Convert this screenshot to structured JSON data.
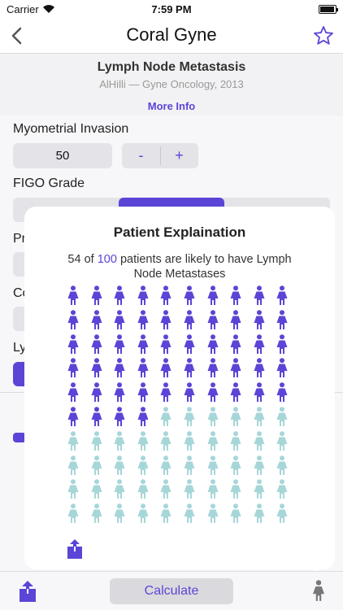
{
  "status_bar": {
    "carrier": "Carrier",
    "time": "7:59 PM"
  },
  "nav": {
    "title": "Coral Gyne"
  },
  "header": {
    "title": "Lymph Node Metastasis",
    "subtitle": "AlHilli — Gyne Oncology, 2013",
    "more_info": "More Info"
  },
  "form": {
    "myometrial_label": "Myometrial Invasion",
    "myometrial_value": "50",
    "minus": "-",
    "plus": "+",
    "figo_label": "FIGO Grade",
    "partial_labels": [
      "Pr",
      "Co",
      "Ly"
    ]
  },
  "popover": {
    "title": "Patient Explaination",
    "count": "54",
    "of": "of",
    "total": "100",
    "line1_rest": "patients are likely to have Lymph",
    "line2": "Node Metastases"
  },
  "icon_grid": {
    "highlighted": 54,
    "total": 100,
    "columns": 10
  },
  "colors": {
    "accent": "#5a45d6",
    "muted": "#a7d6d9"
  },
  "bottom": {
    "calculate_label": "Calculate"
  }
}
